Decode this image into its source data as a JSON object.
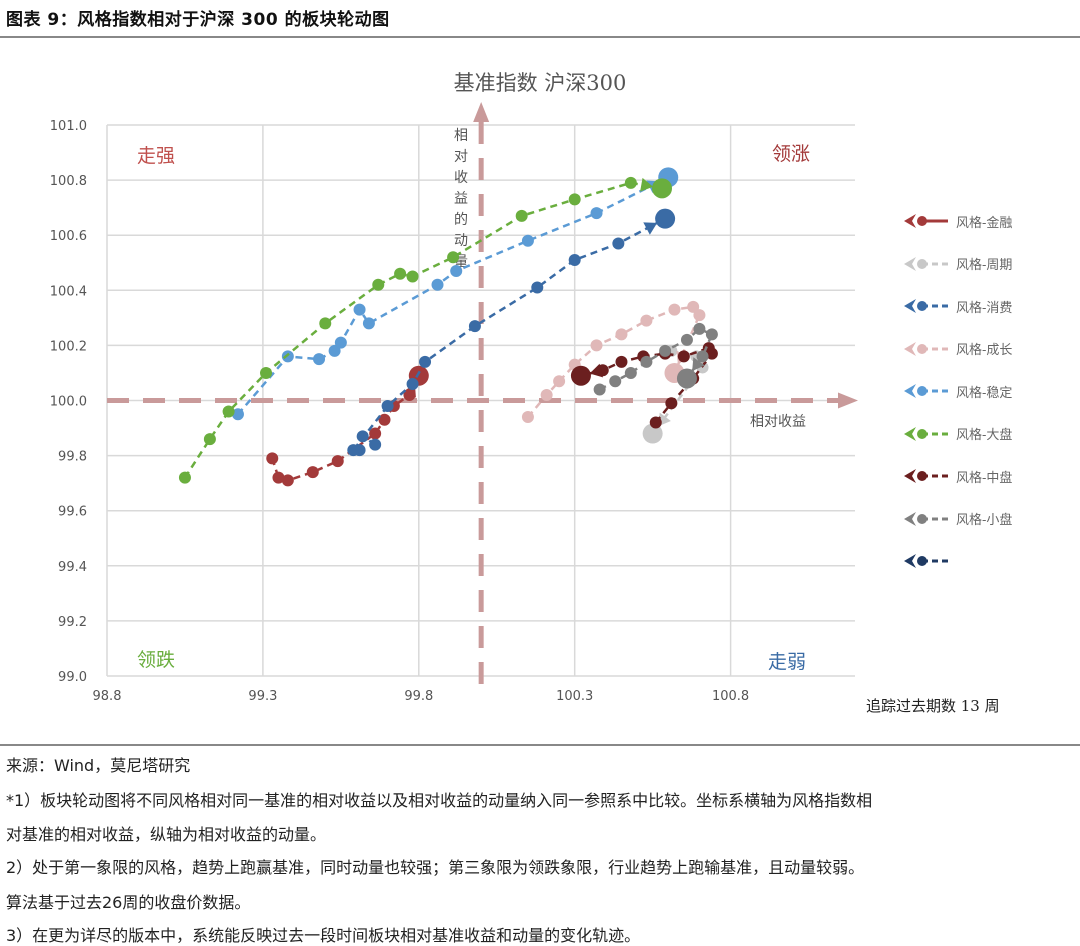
{
  "figure": {
    "title": "图表 9：风格指数相对于沪深 300 的板块轮动图",
    "tracking_label": "追踪过去期数 13 周"
  },
  "chart_data": {
    "type": "scatter",
    "title": "基准指数 沪深300",
    "xlabel": "相对收益",
    "ylabel": "相对收益的动量",
    "xlim": [
      98.8,
      101.2
    ],
    "ylim": [
      99.0,
      101.0
    ],
    "x_ticks": [
      "98.8",
      "99.3",
      "99.8",
      "100.3",
      "100.8"
    ],
    "y_ticks": [
      "101.0",
      "100.8",
      "100.6",
      "100.4",
      "100.2",
      "100.0",
      "99.8",
      "99.6",
      "99.4",
      "99.2",
      "99.0"
    ],
    "reference_lines": {
      "x": 100.0,
      "y": 100.0
    },
    "quadrant_labels": {
      "top_left": "走强",
      "top_right": "领涨",
      "bottom_left": "领跌",
      "bottom_right": "走弱"
    },
    "grid": true,
    "legend_position": "right",
    "series": [
      {
        "name": "风格-金融",
        "color": "#A33A3A",
        "points": [
          [
            99.33,
            99.79
          ],
          [
            99.35,
            99.72
          ],
          [
            99.38,
            99.71
          ],
          [
            99.46,
            99.74
          ],
          [
            99.54,
            99.78
          ],
          [
            99.66,
            99.88
          ],
          [
            99.69,
            99.93
          ],
          [
            99.72,
            99.98
          ],
          [
            99.77,
            100.02
          ],
          [
            99.8,
            100.09
          ]
        ]
      },
      {
        "name": "风格-周期",
        "color": "#C8C8C8",
        "points": [
          [
            100.61,
            100.18
          ],
          [
            100.69,
            100.16
          ],
          [
            100.71,
            100.12
          ],
          [
            100.55,
            99.88
          ]
        ]
      },
      {
        "name": "风格-消费",
        "color": "#3A6BA5",
        "points": [
          [
            99.66,
            99.84
          ],
          [
            99.62,
            99.87
          ],
          [
            99.61,
            99.82
          ],
          [
            99.59,
            99.82
          ],
          [
            99.7,
            99.98
          ],
          [
            99.78,
            100.06
          ],
          [
            99.82,
            100.14
          ],
          [
            99.98,
            100.27
          ],
          [
            100.18,
            100.41
          ],
          [
            100.3,
            100.51
          ],
          [
            100.44,
            100.57
          ],
          [
            100.59,
            100.66
          ]
        ]
      },
      {
        "name": "风格-成长",
        "color": "#E0B8B8",
        "points": [
          [
            100.15,
            99.94
          ],
          [
            100.21,
            100.02
          ],
          [
            100.25,
            100.07
          ],
          [
            100.3,
            100.13
          ],
          [
            100.37,
            100.2
          ],
          [
            100.45,
            100.24
          ],
          [
            100.53,
            100.29
          ],
          [
            100.62,
            100.33
          ],
          [
            100.68,
            100.34
          ],
          [
            100.7,
            100.31
          ],
          [
            100.62,
            100.1
          ]
        ]
      },
      {
        "name": "风格-稳定",
        "color": "#5B9BD5",
        "points": [
          [
            99.22,
            99.95
          ],
          [
            99.38,
            100.16
          ],
          [
            99.48,
            100.15
          ],
          [
            99.53,
            100.18
          ],
          [
            99.55,
            100.21
          ],
          [
            99.61,
            100.33
          ],
          [
            99.64,
            100.28
          ],
          [
            99.86,
            100.42
          ],
          [
            99.92,
            100.47
          ],
          [
            100.15,
            100.58
          ],
          [
            100.37,
            100.68
          ],
          [
            100.6,
            100.81
          ]
        ]
      },
      {
        "name": "风格-大盘",
        "color": "#6AAE3E",
        "points": [
          [
            99.05,
            99.72
          ],
          [
            99.13,
            99.86
          ],
          [
            99.19,
            99.96
          ],
          [
            99.31,
            100.1
          ],
          [
            99.5,
            100.28
          ],
          [
            99.67,
            100.42
          ],
          [
            99.74,
            100.46
          ],
          [
            99.78,
            100.45
          ],
          [
            99.91,
            100.52
          ],
          [
            100.13,
            100.67
          ],
          [
            100.3,
            100.73
          ],
          [
            100.48,
            100.79
          ],
          [
            100.58,
            100.77
          ]
        ]
      },
      {
        "name": "风格-中盘",
        "color": "#6B1F1F",
        "points": [
          [
            100.56,
            99.92
          ],
          [
            100.61,
            99.99
          ],
          [
            100.68,
            100.08
          ],
          [
            100.74,
            100.17
          ],
          [
            100.73,
            100.19
          ],
          [
            100.65,
            100.16
          ],
          [
            100.59,
            100.17
          ],
          [
            100.52,
            100.16
          ],
          [
            100.45,
            100.14
          ],
          [
            100.39,
            100.11
          ],
          [
            100.32,
            100.09
          ]
        ]
      },
      {
        "name": "风格-小盘",
        "color": "#808080",
        "points": [
          [
            100.38,
            100.04
          ],
          [
            100.43,
            100.07
          ],
          [
            100.48,
            100.1
          ],
          [
            100.53,
            100.14
          ],
          [
            100.59,
            100.18
          ],
          [
            100.66,
            100.22
          ],
          [
            100.7,
            100.26
          ],
          [
            100.74,
            100.24
          ],
          [
            100.71,
            100.16
          ],
          [
            100.66,
            100.08
          ]
        ]
      },
      {
        "name": "",
        "color": "#1F3A63",
        "points": []
      }
    ]
  },
  "notes": {
    "source": "来源：Wind，莫尼塔研究",
    "note1": "*1）板块轮动图将不同风格相对同一基准的相对收益以及相对收益的动量纳入同一参照系中比较。坐标系横轴为风格指数相",
    "note1b": "对基准的相对收益，纵轴为相对收益的动量。",
    "note2": " 2）处于第一象限的风格，趋势上跑赢基准，同时动量也较强；第三象限为领跌象限，行业趋势上跑输基准，且动量较弱。",
    "note2b": "算法基于过去26周的收盘价数据。",
    "note3": " 3）在更为详尽的版本中，系统能反映过去一段时间板块相对基准收益和动量的变化轨迹。"
  }
}
